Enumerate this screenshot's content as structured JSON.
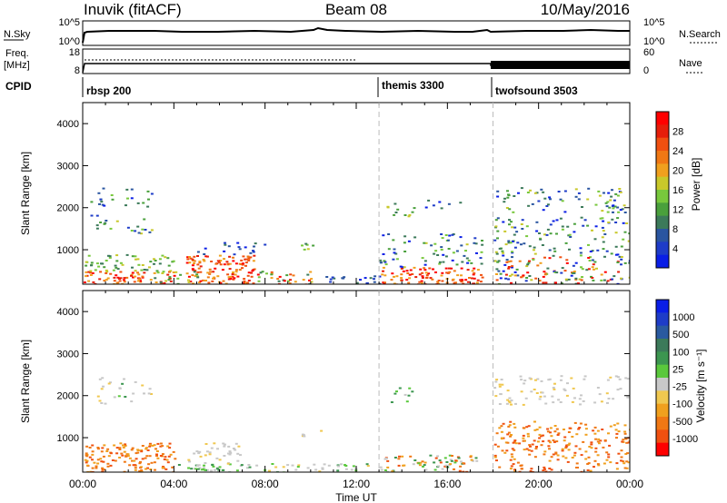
{
  "header": {
    "station": "Inuvik (fitACF)",
    "beam": "Beam 08",
    "date": "10/May/2016"
  },
  "colors": {
    "power_scale": [
      "#0a1ee6",
      "#1e3cc8",
      "#2a55a0",
      "#3c7a5a",
      "#4aa03c",
      "#78c83c",
      "#c8c82a",
      "#f0a01e",
      "#f07814",
      "#f05010",
      "#e61e0a",
      "#ff0000"
    ],
    "velocity_scale": [
      "#ff0000",
      "#f05010",
      "#f07814",
      "#f0a01e",
      "#f0c850",
      "#c8c8c8",
      "#5ac83c",
      "#3c9650",
      "#3c7a5a",
      "#2a5aa0",
      "#1e3cc8",
      "#0a1ee6"
    ]
  },
  "panels": {
    "nsky": {
      "left_label": "N.Sky",
      "right_label": "N.Search",
      "left_ticks": [
        "10^5",
        "10^0"
      ],
      "right_ticks": [
        "10^5",
        "10^0"
      ]
    },
    "freq": {
      "left_label_1": "Freq.",
      "left_label_2": "[MHz]",
      "right_label": "Nave",
      "left_ticks": [
        "18",
        "8"
      ],
      "right_ticks": [
        "60",
        "0"
      ]
    },
    "cpid": {
      "label": "CPID",
      "segments": [
        {
          "name": "rbsp 200",
          "start_hour": 0
        },
        {
          "name": "themis 3300",
          "start_hour": 13
        },
        {
          "name": "twofsound 3503",
          "start_hour": 18
        }
      ]
    },
    "power": {
      "colorbar_label": "Power [dB]",
      "colorbar_ticks": [
        "28",
        "24",
        "20",
        "16",
        "12",
        "8",
        "4"
      ]
    },
    "velocity": {
      "colorbar_label": "Velocity [m s⁻¹]",
      "colorbar_ticks": [
        "1000",
        "500",
        "100",
        "25",
        "-25",
        "-100",
        "-500",
        "-1000"
      ]
    }
  },
  "chart_data": {
    "type": "heatmap",
    "title": "Inuvik (fitACF)",
    "subtitle": "Beam 08",
    "date": "10/May/2016",
    "xlabel": "Time UT",
    "x_ticks": [
      "00:00",
      "04:00",
      "08:00",
      "12:00",
      "16:00",
      "20:00",
      "00:00"
    ],
    "xlim_hours": [
      0,
      24
    ],
    "ylabel": "Slant Range [km]",
    "y_ticks": [
      "1000",
      "2000",
      "3000",
      "4000"
    ],
    "ylim_km": [
      180,
      4500
    ],
    "mode_boundaries_hours": [
      13,
      18
    ],
    "power_range_db": [
      0,
      30
    ],
    "velocity_levels_ms": [
      -1000,
      -500,
      -100,
      -25,
      25,
      100,
      500,
      1000
    ]
  }
}
